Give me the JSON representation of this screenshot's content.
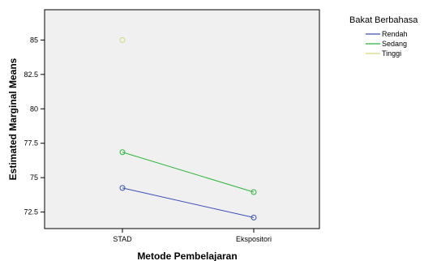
{
  "chart_data": {
    "type": "line",
    "xlabel": "Metode Pembelajaran",
    "ylabel": "Estimated Marginal Means",
    "categories": [
      "STAD",
      "Ekspositori"
    ],
    "ylim": [
      71.3,
      87.2
    ],
    "yticks": [
      "72.5",
      "75",
      "77.5",
      "80",
      "82.5",
      "85"
    ],
    "ytick_values": [
      72.5,
      75,
      77.5,
      80,
      82.5,
      85
    ],
    "legend_title": "Bakat Berbahasa",
    "legend_position": "right",
    "grid": false,
    "series": [
      {
        "name": "Rendah",
        "values": [
          74.25,
          72.1
        ],
        "color": "#3a4fb8"
      },
      {
        "name": "Sedang",
        "values": [
          76.85,
          73.95
        ],
        "color": "#2bb53a"
      },
      {
        "name": "Tinggi",
        "values": [
          85.0,
          null
        ],
        "color": "#d4d97a"
      }
    ]
  }
}
